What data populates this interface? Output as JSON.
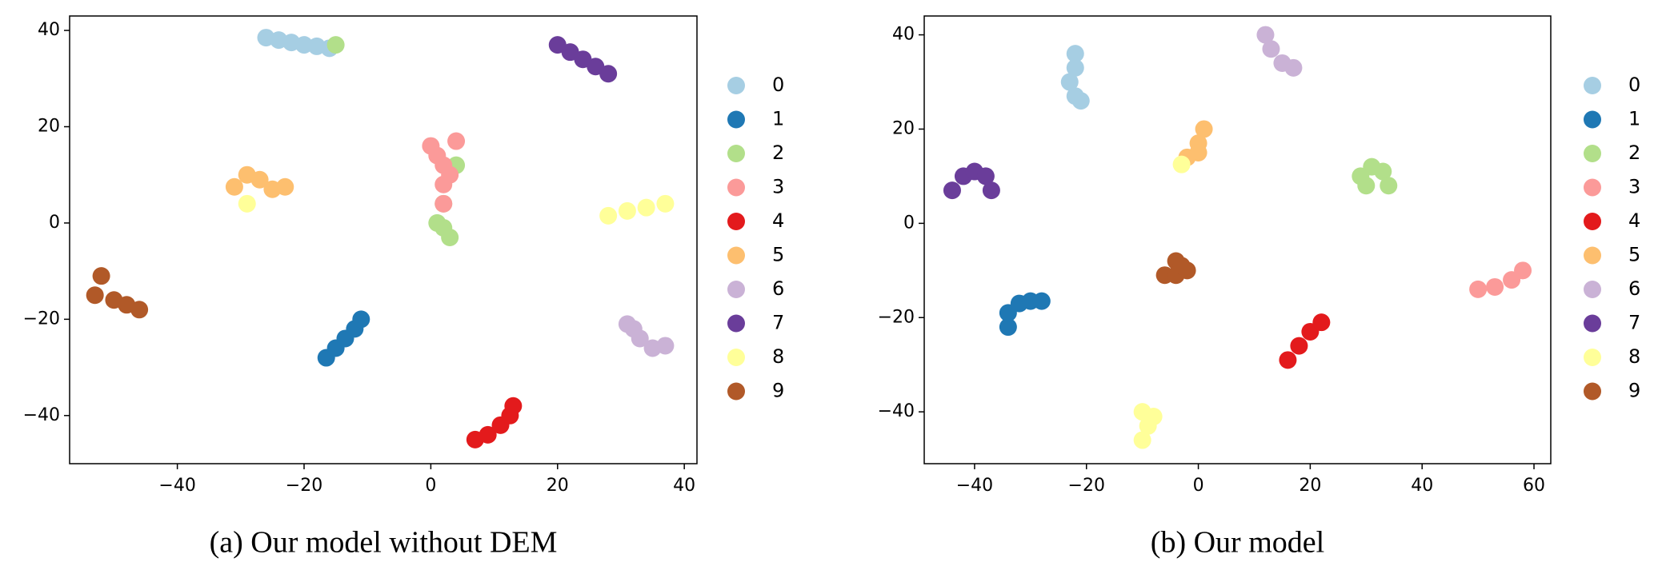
{
  "chart_data": [
    {
      "type": "scatter",
      "title": "(a) Our model without DEM",
      "xlim": [
        -57,
        42
      ],
      "ylim": [
        -50,
        43
      ],
      "xticks": [
        {
          "value": -40,
          "label": "−40"
        },
        {
          "value": -20,
          "label": "−20"
        },
        0,
        20,
        40
      ],
      "yticks": [
        {
          "value": -40,
          "label": "−40"
        },
        {
          "value": -20,
          "label": "−20"
        },
        0,
        20,
        40
      ],
      "series": [
        {
          "name": "0",
          "color": "#a6cee3",
          "x": [
            -26,
            -24,
            -22,
            -20,
            -18,
            -16
          ],
          "y": [
            38.5,
            38,
            37.5,
            37,
            36.7,
            36.3
          ]
        },
        {
          "name": "1",
          "color": "#1f78b4",
          "x": [
            -16.5,
            -15,
            -13.5,
            -12,
            -11
          ],
          "y": [
            -28,
            -26,
            -24,
            -22,
            -20
          ]
        },
        {
          "name": "2",
          "color": "#b2df8a",
          "x": [
            -15,
            2,
            1,
            2,
            3,
            4
          ],
          "y": [
            37,
            4,
            0,
            -1,
            -3,
            12
          ]
        },
        {
          "name": "3",
          "color": "#fb9a99",
          "x": [
            0,
            1,
            2,
            3,
            2,
            4,
            2
          ],
          "y": [
            16,
            14,
            12,
            10,
            8,
            17,
            4
          ]
        },
        {
          "name": "4",
          "color": "#e31a1c",
          "x": [
            7,
            9,
            11,
            12.5,
            13
          ],
          "y": [
            -45,
            -44,
            -42,
            -40,
            -38
          ]
        },
        {
          "name": "5",
          "color": "#fdbf6f",
          "x": [
            -31,
            -29,
            -27,
            -25,
            -23
          ],
          "y": [
            7.5,
            10,
            9,
            7,
            7.5
          ]
        },
        {
          "name": "6",
          "color": "#cab2d6",
          "x": [
            31,
            32,
            33,
            35,
            37
          ],
          "y": [
            -21,
            -22,
            -24,
            -26,
            -25.5
          ]
        },
        {
          "name": "7",
          "color": "#6a3d9a",
          "x": [
            20,
            22,
            24,
            26,
            28
          ],
          "y": [
            37,
            35.5,
            34,
            32.5,
            31
          ]
        },
        {
          "name": "8",
          "color": "#ffff99",
          "x": [
            -29,
            28,
            31,
            34,
            37
          ],
          "y": [
            4,
            1.5,
            2.5,
            3.2,
            4
          ]
        },
        {
          "name": "9",
          "color": "#b15928",
          "x": [
            -52,
            -53,
            -50,
            -48,
            -46
          ],
          "y": [
            -11,
            -15,
            -16,
            -17,
            -18
          ]
        }
      ]
    },
    {
      "type": "scatter",
      "title": "(b) Our model",
      "xlim": [
        -49,
        63
      ],
      "ylim": [
        -51,
        44
      ],
      "xticks": [
        {
          "value": -40,
          "label": "−40"
        },
        {
          "value": -20,
          "label": "−20"
        },
        0,
        20,
        40,
        60
      ],
      "yticks": [
        {
          "value": -40,
          "label": "−40"
        },
        {
          "value": -20,
          "label": "−20"
        },
        0,
        20,
        40
      ],
      "series": [
        {
          "name": "0",
          "color": "#a6cee3",
          "x": [
            -22,
            -22,
            -23,
            -22,
            -21
          ],
          "y": [
            36,
            33,
            30,
            27,
            26
          ]
        },
        {
          "name": "1",
          "color": "#1f78b4",
          "x": [
            -34,
            -34,
            -32,
            -30,
            -28
          ],
          "y": [
            -22,
            -19,
            -17,
            -16.5,
            -16.5
          ]
        },
        {
          "name": "2",
          "color": "#b2df8a",
          "x": [
            30,
            31,
            33,
            34,
            29
          ],
          "y": [
            8,
            12,
            11,
            8,
            10
          ]
        },
        {
          "name": "3",
          "color": "#fb9a99",
          "x": [
            50,
            53,
            56,
            58
          ],
          "y": [
            -14,
            -13.5,
            -12,
            -10
          ]
        },
        {
          "name": "4",
          "color": "#e31a1c",
          "x": [
            16,
            18,
            20,
            22
          ],
          "y": [
            -29,
            -26,
            -23,
            -21
          ]
        },
        {
          "name": "5",
          "color": "#fdbf6f",
          "x": [
            -2,
            0,
            1,
            0
          ],
          "y": [
            14,
            17,
            20,
            15
          ]
        },
        {
          "name": "6",
          "color": "#cab2d6",
          "x": [
            12,
            13,
            15,
            17
          ],
          "y": [
            40,
            37,
            34,
            33
          ]
        },
        {
          "name": "7",
          "color": "#6a3d9a",
          "x": [
            -44,
            -42,
            -40,
            -38,
            -37
          ],
          "y": [
            7,
            10,
            11,
            10,
            7
          ]
        },
        {
          "name": "8",
          "color": "#ffff99",
          "x": [
            -3,
            -10,
            -9,
            -10,
            -8
          ],
          "y": [
            12.5,
            -40,
            -43,
            -46,
            -41
          ]
        },
        {
          "name": "9",
          "color": "#b15928",
          "x": [
            -6,
            -4,
            -2,
            -4,
            -3
          ],
          "y": [
            -11,
            -8,
            -10,
            -11,
            -9
          ]
        }
      ]
    }
  ]
}
